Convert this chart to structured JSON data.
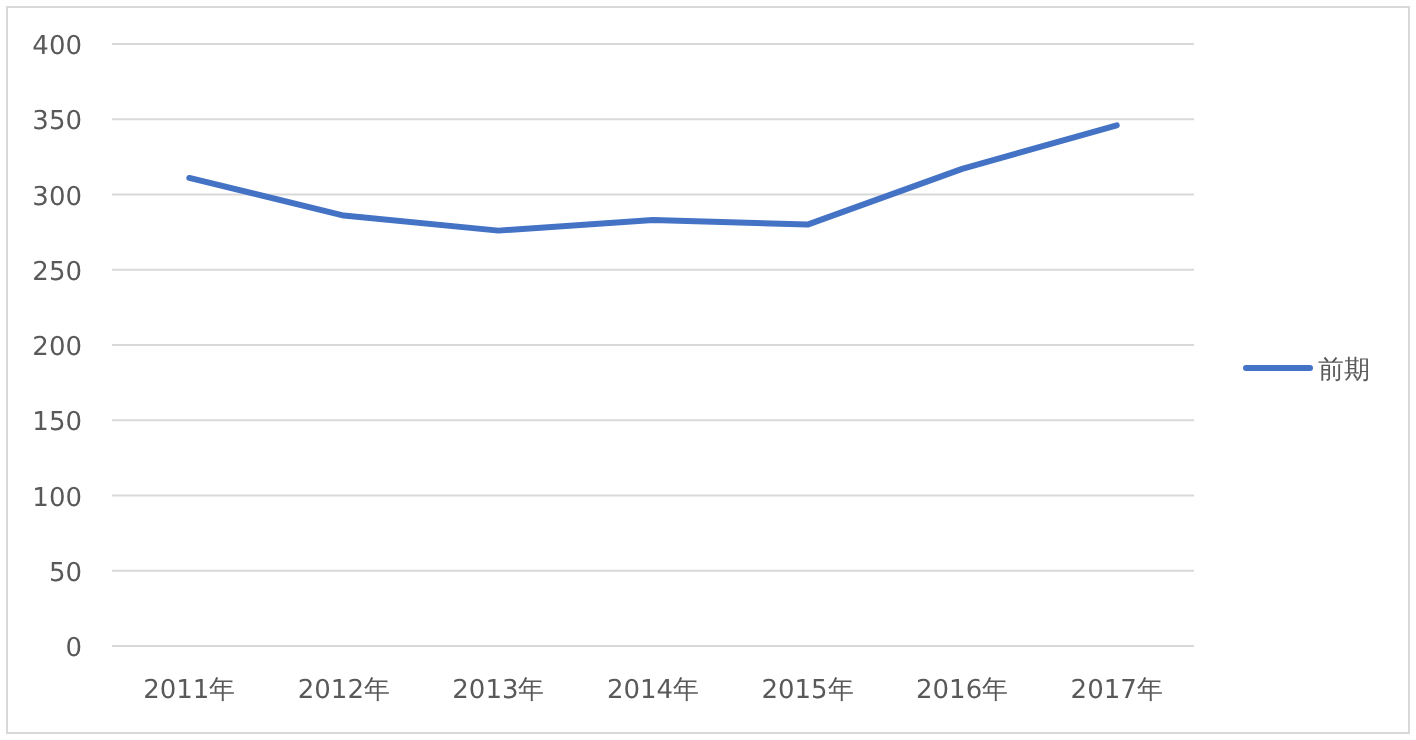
{
  "chart_data": {
    "type": "line",
    "categories": [
      "2011年",
      "2012年",
      "2013年",
      "2014年",
      "2015年",
      "2016年",
      "2017年"
    ],
    "series": [
      {
        "name": "前期",
        "color": "#4472c4",
        "values": [
          311,
          286,
          276,
          283,
          280,
          317,
          346
        ]
      }
    ],
    "ylim": [
      0,
      400
    ],
    "yticks": [
      0,
      50,
      100,
      150,
      200,
      250,
      300,
      350,
      400
    ],
    "grid": "y",
    "legend": "right",
    "marker": "none"
  }
}
